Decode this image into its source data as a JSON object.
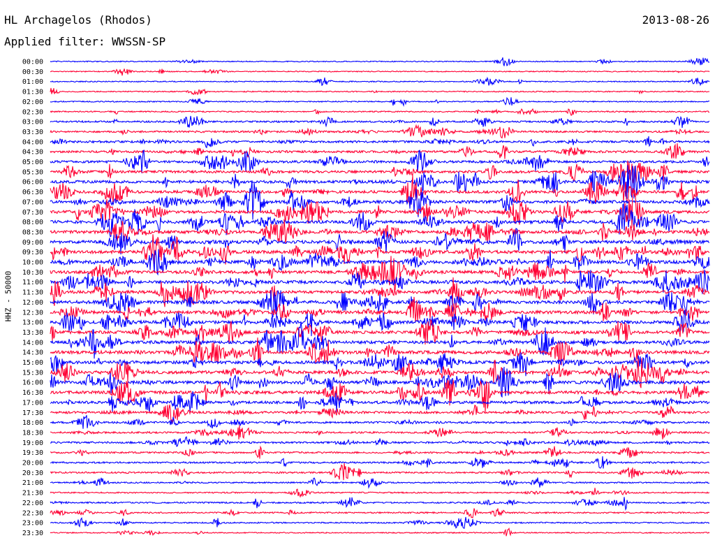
{
  "header": {
    "station": "HL Archagelos (Rhodos)",
    "date": "2013-08-26",
    "filter": "Applied filter: WWSSN-SP"
  },
  "chart_data": {
    "type": "line",
    "ylabel": "HHZ - 50000",
    "rows": [
      "00:00",
      "00:30",
      "01:00",
      "01:30",
      "02:00",
      "02:30",
      "03:00",
      "03:30",
      "04:00",
      "04:30",
      "05:00",
      "05:30",
      "06:00",
      "06:30",
      "07:00",
      "07:30",
      "08:00",
      "08:30",
      "09:00",
      "09:30",
      "10:00",
      "10:30",
      "11:00",
      "11:30",
      "12:00",
      "12:30",
      "13:00",
      "13:30",
      "14:00",
      "14:30",
      "15:00",
      "15:30",
      "16:00",
      "16:30",
      "17:00",
      "17:30",
      "18:00",
      "18:30",
      "19:00",
      "19:30",
      "20:00",
      "20:30",
      "21:00",
      "21:30",
      "22:00",
      "22:30",
      "23:00",
      "23:30"
    ],
    "activity": [
      0.12,
      0.12,
      0.12,
      0.14,
      0.16,
      0.22,
      0.38,
      0.42,
      0.55,
      0.6,
      0.65,
      0.7,
      0.8,
      0.78,
      0.85,
      0.85,
      0.88,
      0.9,
      0.9,
      0.95,
      0.95,
      0.9,
      0.88,
      0.9,
      0.92,
      0.92,
      0.92,
      0.85,
      0.85,
      0.95,
      0.92,
      0.9,
      0.92,
      0.9,
      0.75,
      0.6,
      0.45,
      0.4,
      0.45,
      0.38,
      0.38,
      0.32,
      0.25,
      0.22,
      0.3,
      0.28,
      0.22,
      0.15
    ],
    "colors": [
      "#0000ff",
      "#ff0033"
    ],
    "grid": false
  }
}
